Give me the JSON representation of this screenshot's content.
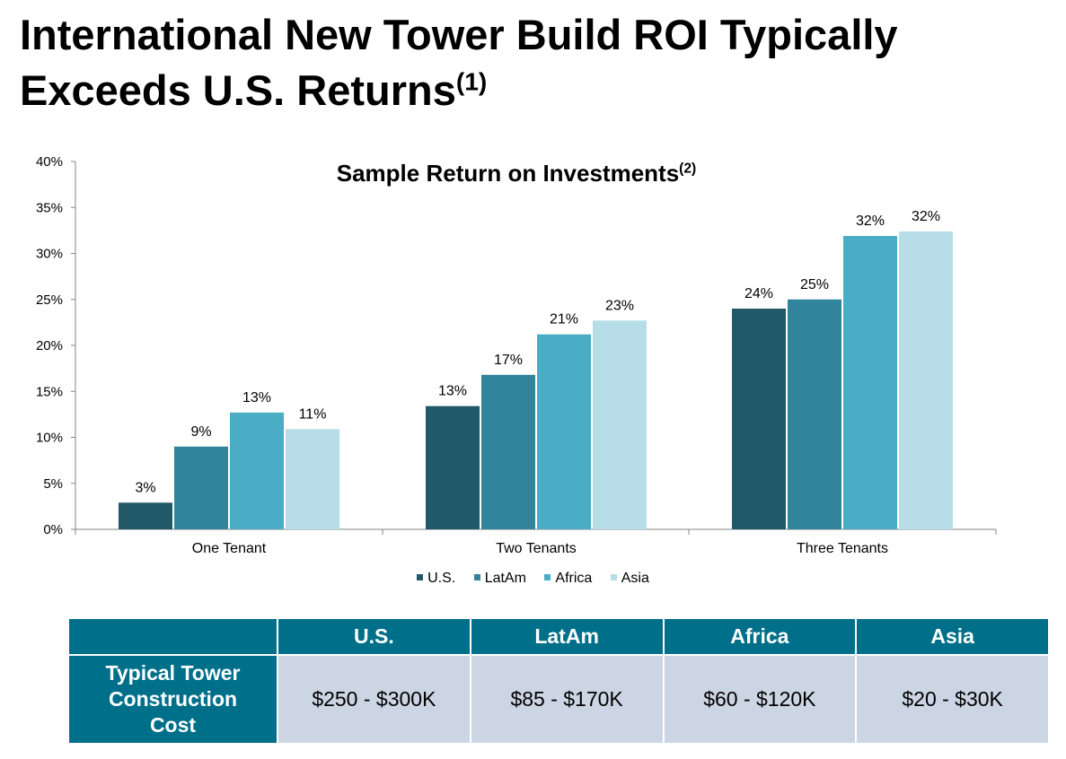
{
  "title": {
    "text": "International New Tower Build ROI Typically Exceeds U.S. Returns",
    "footnote": "(1)"
  },
  "chart_data": {
    "type": "bar",
    "title": "Sample Return on Investments",
    "title_footnote": "(2)",
    "categories": [
      "One Tenant",
      "Two Tenants",
      "Three Tenants"
    ],
    "series": [
      {
        "name": "U.S.",
        "color": "#215968",
        "values": [
          3,
          13,
          24
        ],
        "labels": [
          "3%",
          "13%",
          "24%"
        ]
      },
      {
        "name": "LatAm",
        "color": "#31849b",
        "values": [
          9,
          17,
          25
        ],
        "labels": [
          "9%",
          "17%",
          "25%"
        ]
      },
      {
        "name": "Africa",
        "color": "#4bacc6",
        "values": [
          13,
          21,
          32
        ],
        "labels": [
          "13%",
          "21%",
          "32%"
        ]
      },
      {
        "name": "Asia",
        "color": "#b7dee8",
        "values": [
          11,
          23,
          32
        ],
        "labels": [
          "11%",
          "23%",
          "32%"
        ]
      }
    ],
    "bar_heights": [
      [
        2.9,
        13.4,
        24.0
      ],
      [
        9.0,
        16.8,
        25.0
      ],
      [
        12.7,
        21.2,
        31.9
      ],
      [
        10.9,
        22.7,
        32.4
      ]
    ],
    "ylim": [
      0,
      40
    ],
    "yticks": [
      "0%",
      "5%",
      "10%",
      "15%",
      "20%",
      "25%",
      "30%",
      "35%",
      "40%"
    ],
    "grid": false,
    "legend_position": "bottom"
  },
  "table": {
    "headers": [
      "",
      "U.S.",
      "LatAm",
      "Africa",
      "Asia"
    ],
    "row_label_lines": [
      "Typical Tower",
      "Construction",
      "Cost"
    ],
    "values": [
      "$250 - $300K",
      "$85 - $170K",
      "$60 - $120K",
      "$20 - $30K"
    ]
  },
  "colors": {
    "header_bg": "#006f8a",
    "cell_bg": "#ccd5e3"
  }
}
